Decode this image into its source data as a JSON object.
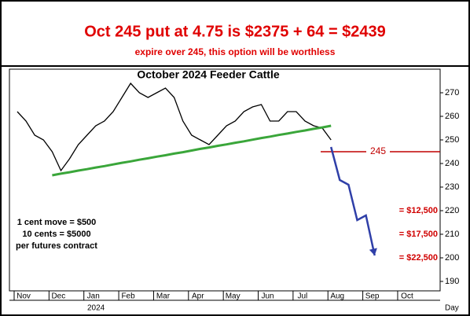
{
  "chart_data": {
    "type": "line",
    "headline": "Oct 245 put at 4.75 is  $2375 + 64 = $2439",
    "subtitle": "expire over 245, this option will be worthless",
    "title": "October 2024 Feeder Cattle",
    "notes": [
      "1 cent move = $500",
      "10 cents = $5000",
      "per futures contract"
    ],
    "year_label": "2024",
    "x_unit": "Day",
    "categories": [
      "Nov",
      null,
      null,
      null,
      "Dec",
      null,
      null,
      null,
      "Jan",
      null,
      null,
      null,
      "Feb",
      null,
      null,
      null,
      "Mar",
      null,
      null,
      null,
      "Apr",
      null,
      null,
      null,
      "May",
      null,
      null,
      null,
      "Jun",
      null,
      null,
      null,
      "Jul",
      null,
      null,
      null,
      "Aug",
      null,
      null,
      null,
      "Sep",
      null,
      null,
      null,
      "Oct",
      null,
      null,
      null
    ],
    "series": [
      {
        "color": "#000000",
        "values": [
          262,
          258,
          252,
          250,
          245,
          237,
          242,
          248,
          252,
          256,
          258,
          262,
          268,
          274,
          270,
          268,
          270,
          272,
          268,
          258,
          252,
          250,
          248,
          252,
          256,
          258,
          262,
          264,
          265,
          258,
          258,
          262,
          262,
          258,
          256,
          255,
          250,
          null,
          null,
          null,
          null,
          null,
          null,
          null,
          null,
          null,
          null,
          null
        ]
      },
      {
        "color": "#3aa63a",
        "values": [
          null,
          null,
          null,
          null,
          235,
          235.7,
          236.3,
          237.0,
          237.6,
          238.3,
          238.9,
          239.6,
          240.3,
          240.9,
          241.6,
          242.2,
          242.9,
          243.5,
          244.2,
          244.8,
          245.5,
          246.2,
          246.8,
          247.5,
          248.1,
          248.8,
          249.4,
          250.1,
          250.8,
          251.4,
          252.1,
          252.7,
          253.4,
          254.0,
          254.7,
          255.3,
          256.0,
          null,
          null,
          null,
          null,
          null,
          null,
          null,
          null,
          null,
          null,
          null
        ]
      },
      {
        "color": "#2f3fa8",
        "values": [
          null,
          null,
          null,
          null,
          null,
          null,
          null,
          null,
          null,
          null,
          null,
          null,
          null,
          null,
          null,
          null,
          null,
          null,
          null,
          null,
          null,
          null,
          null,
          null,
          null,
          null,
          null,
          null,
          null,
          null,
          null,
          null,
          null,
          null,
          null,
          null,
          247,
          233,
          231,
          216,
          218,
          201,
          null,
          null,
          null,
          null,
          null,
          null
        ]
      }
    ],
    "hline": {
      "value": 245,
      "label": "245",
      "color": "#c00000"
    },
    "annotations": [
      {
        "text": "= $12,500",
        "y": 220
      },
      {
        "text": "= $17,500",
        "y": 210
      },
      {
        "text": "= $22,500",
        "y": 200
      }
    ],
    "annotation_color": "#d00000",
    "ylim": [
      186,
      280
    ],
    "yticks": [
      190,
      200,
      210,
      220,
      230,
      240,
      250,
      260,
      270
    ],
    "grid": false
  }
}
